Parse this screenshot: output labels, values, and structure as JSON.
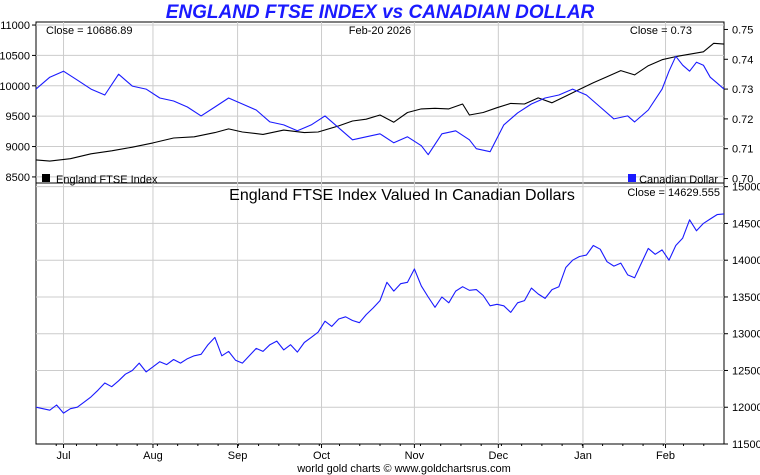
{
  "title": "ENGLAND FTSE INDEX vs CANADIAN DOLLAR",
  "footer": "world gold charts © www.goldchartsrus.com",
  "colors": {
    "ftse": "#000000",
    "cad": "#1a1aff",
    "combined": "#1a1aff",
    "title": "#1a1aff",
    "grid": "#cccccc",
    "frame": "#000000"
  },
  "chart_data": [
    {
      "type": "line",
      "panel": "top",
      "date_label": "Feb-20  2026",
      "left_close_label": "Close = 10686.89",
      "right_close_label": "Close = 0.73",
      "left_axis": {
        "ticks": [
          "11000",
          "10500",
          "10000",
          "9500",
          "9000",
          "8500"
        ],
        "ylim": [
          8400,
          11050
        ]
      },
      "right_axis": {
        "ticks": [
          "0.75",
          "0.74",
          "0.73",
          "0.72",
          "0.71",
          "0.70"
        ],
        "ylim": [
          0.6985,
          0.7525
        ]
      },
      "legend": [
        {
          "name": "England FTSE Index",
          "color": "#000000",
          "position": "bottom-left"
        },
        {
          "name": "Canadian Dollar",
          "color": "#1a1aff",
          "position": "bottom-right"
        }
      ],
      "series": [
        {
          "name": "England FTSE Index",
          "axis": "left",
          "color": "#000000",
          "points": [
            [
              0,
              8780
            ],
            [
              0.02,
              8760
            ],
            [
              0.05,
              8800
            ],
            [
              0.08,
              8880
            ],
            [
              0.11,
              8930
            ],
            [
              0.14,
              8990
            ],
            [
              0.17,
              9060
            ],
            [
              0.2,
              9140
            ],
            [
              0.23,
              9160
            ],
            [
              0.26,
              9230
            ],
            [
              0.28,
              9290
            ],
            [
              0.3,
              9240
            ],
            [
              0.33,
              9200
            ],
            [
              0.36,
              9270
            ],
            [
              0.39,
              9230
            ],
            [
              0.41,
              9240
            ],
            [
              0.44,
              9340
            ],
            [
              0.46,
              9420
            ],
            [
              0.48,
              9450
            ],
            [
              0.5,
              9520
            ],
            [
              0.52,
              9400
            ],
            [
              0.54,
              9560
            ],
            [
              0.56,
              9620
            ],
            [
              0.58,
              9630
            ],
            [
              0.6,
              9620
            ],
            [
              0.62,
              9700
            ],
            [
              0.63,
              9520
            ],
            [
              0.65,
              9560
            ],
            [
              0.67,
              9640
            ],
            [
              0.69,
              9710
            ],
            [
              0.71,
              9700
            ],
            [
              0.73,
              9800
            ],
            [
              0.75,
              9720
            ],
            [
              0.77,
              9830
            ],
            [
              0.79,
              9940
            ],
            [
              0.81,
              10050
            ],
            [
              0.83,
              10150
            ],
            [
              0.85,
              10250
            ],
            [
              0.87,
              10180
            ],
            [
              0.89,
              10330
            ],
            [
              0.91,
              10430
            ],
            [
              0.93,
              10480
            ],
            [
              0.95,
              10520
            ],
            [
              0.97,
              10560
            ],
            [
              0.985,
              10700
            ],
            [
              1,
              10687
            ]
          ]
        },
        {
          "name": "Canadian Dollar",
          "axis": "right",
          "color": "#1a1aff",
          "points": [
            [
              0,
              0.73
            ],
            [
              0.02,
              0.734
            ],
            [
              0.04,
              0.736
            ],
            [
              0.06,
              0.733
            ],
            [
              0.08,
              0.73
            ],
            [
              0.1,
              0.728
            ],
            [
              0.12,
              0.735
            ],
            [
              0.14,
              0.731
            ],
            [
              0.16,
              0.73
            ],
            [
              0.18,
              0.727
            ],
            [
              0.2,
              0.726
            ],
            [
              0.22,
              0.724
            ],
            [
              0.24,
              0.721
            ],
            [
              0.26,
              0.724
            ],
            [
              0.28,
              0.727
            ],
            [
              0.3,
              0.725
            ],
            [
              0.32,
              0.723
            ],
            [
              0.34,
              0.719
            ],
            [
              0.36,
              0.718
            ],
            [
              0.38,
              0.716
            ],
            [
              0.4,
              0.718
            ],
            [
              0.42,
              0.721
            ],
            [
              0.44,
              0.717
            ],
            [
              0.46,
              0.713
            ],
            [
              0.48,
              0.714
            ],
            [
              0.5,
              0.715
            ],
            [
              0.52,
              0.712
            ],
            [
              0.54,
              0.714
            ],
            [
              0.56,
              0.711
            ],
            [
              0.57,
              0.708
            ],
            [
              0.59,
              0.715
            ],
            [
              0.61,
              0.716
            ],
            [
              0.63,
              0.713
            ],
            [
              0.64,
              0.71
            ],
            [
              0.66,
              0.709
            ],
            [
              0.68,
              0.718
            ],
            [
              0.7,
              0.722
            ],
            [
              0.72,
              0.725
            ],
            [
              0.74,
              0.727
            ],
            [
              0.76,
              0.728
            ],
            [
              0.78,
              0.73
            ],
            [
              0.8,
              0.728
            ],
            [
              0.82,
              0.724
            ],
            [
              0.84,
              0.72
            ],
            [
              0.86,
              0.721
            ],
            [
              0.87,
              0.719
            ],
            [
              0.89,
              0.723
            ],
            [
              0.91,
              0.73
            ],
            [
              0.92,
              0.736
            ],
            [
              0.93,
              0.741
            ],
            [
              0.94,
              0.738
            ],
            [
              0.95,
              0.736
            ],
            [
              0.96,
              0.739
            ],
            [
              0.97,
              0.738
            ],
            [
              0.98,
              0.734
            ],
            [
              0.99,
              0.732
            ],
            [
              1,
              0.73
            ]
          ]
        }
      ]
    },
    {
      "type": "line",
      "panel": "bottom",
      "title": "England FTSE Index Valued In Canadian Dollars",
      "right_close_label": "Close = 14629.555",
      "right_axis": {
        "ticks": [
          "15000",
          "14500",
          "14000",
          "13500",
          "13000",
          "12500",
          "12000",
          "11500"
        ],
        "ylim": [
          11500,
          15050
        ]
      },
      "x_labels": [
        {
          "label": "Jul",
          "pos": 0.04
        },
        {
          "label": "Aug",
          "pos": 0.17
        },
        {
          "label": "Sep",
          "pos": 0.293
        },
        {
          "label": "Oct",
          "pos": 0.415
        },
        {
          "label": "Nov",
          "pos": 0.55
        },
        {
          "label": "Dec",
          "pos": 0.672
        },
        {
          "label": "Jan",
          "pos": 0.795
        },
        {
          "label": "Feb",
          "pos": 0.915
        }
      ],
      "series": [
        {
          "name": "England FTSE Index Valued In Canadian Dollars",
          "axis": "right",
          "color": "#1a1aff",
          "points": [
            [
              0,
              12000
            ],
            [
              0.02,
              11960
            ],
            [
              0.03,
              12030
            ],
            [
              0.04,
              11920
            ],
            [
              0.05,
              11980
            ],
            [
              0.06,
              12000
            ],
            [
              0.07,
              12070
            ],
            [
              0.08,
              12140
            ],
            [
              0.09,
              12230
            ],
            [
              0.1,
              12330
            ],
            [
              0.11,
              12280
            ],
            [
              0.12,
              12360
            ],
            [
              0.13,
              12450
            ],
            [
              0.14,
              12500
            ],
            [
              0.15,
              12600
            ],
            [
              0.16,
              12480
            ],
            [
              0.17,
              12550
            ],
            [
              0.18,
              12620
            ],
            [
              0.19,
              12580
            ],
            [
              0.2,
              12650
            ],
            [
              0.21,
              12600
            ],
            [
              0.22,
              12660
            ],
            [
              0.23,
              12700
            ],
            [
              0.24,
              12720
            ],
            [
              0.25,
              12850
            ],
            [
              0.26,
              12950
            ],
            [
              0.27,
              12700
            ],
            [
              0.28,
              12760
            ],
            [
              0.29,
              12640
            ],
            [
              0.3,
              12600
            ],
            [
              0.31,
              12700
            ],
            [
              0.32,
              12800
            ],
            [
              0.33,
              12760
            ],
            [
              0.34,
              12850
            ],
            [
              0.35,
              12900
            ],
            [
              0.36,
              12780
            ],
            [
              0.37,
              12850
            ],
            [
              0.38,
              12750
            ],
            [
              0.39,
              12880
            ],
            [
              0.4,
              12950
            ],
            [
              0.41,
              13020
            ],
            [
              0.42,
              13170
            ],
            [
              0.43,
              13100
            ],
            [
              0.44,
              13200
            ],
            [
              0.45,
              13230
            ],
            [
              0.46,
              13180
            ],
            [
              0.47,
              13150
            ],
            [
              0.48,
              13260
            ],
            [
              0.49,
              13350
            ],
            [
              0.5,
              13450
            ],
            [
              0.51,
              13700
            ],
            [
              0.52,
              13580
            ],
            [
              0.53,
              13680
            ],
            [
              0.54,
              13700
            ],
            [
              0.55,
              13880
            ],
            [
              0.56,
              13650
            ],
            [
              0.57,
              13500
            ],
            [
              0.58,
              13360
            ],
            [
              0.59,
              13500
            ],
            [
              0.6,
              13420
            ],
            [
              0.61,
              13580
            ],
            [
              0.62,
              13640
            ],
            [
              0.63,
              13590
            ],
            [
              0.64,
              13600
            ],
            [
              0.65,
              13520
            ],
            [
              0.66,
              13380
            ],
            [
              0.67,
              13400
            ],
            [
              0.68,
              13380
            ],
            [
              0.69,
              13290
            ],
            [
              0.7,
              13420
            ],
            [
              0.71,
              13450
            ],
            [
              0.72,
              13620
            ],
            [
              0.73,
              13540
            ],
            [
              0.74,
              13480
            ],
            [
              0.75,
              13600
            ],
            [
              0.76,
              13640
            ],
            [
              0.77,
              13900
            ],
            [
              0.78,
              14000
            ],
            [
              0.79,
              14050
            ],
            [
              0.8,
              14070
            ],
            [
              0.81,
              14200
            ],
            [
              0.82,
              14150
            ],
            [
              0.83,
              13980
            ],
            [
              0.84,
              13920
            ],
            [
              0.85,
              13960
            ],
            [
              0.86,
              13800
            ],
            [
              0.87,
              13760
            ],
            [
              0.88,
              13960
            ],
            [
              0.89,
              14160
            ],
            [
              0.9,
              14080
            ],
            [
              0.91,
              14140
            ],
            [
              0.92,
              14000
            ],
            [
              0.93,
              14200
            ],
            [
              0.94,
              14300
            ],
            [
              0.95,
              14550
            ],
            [
              0.96,
              14400
            ],
            [
              0.97,
              14500
            ],
            [
              0.98,
              14560
            ],
            [
              0.99,
              14620
            ],
            [
              1,
              14630
            ]
          ]
        }
      ]
    }
  ]
}
